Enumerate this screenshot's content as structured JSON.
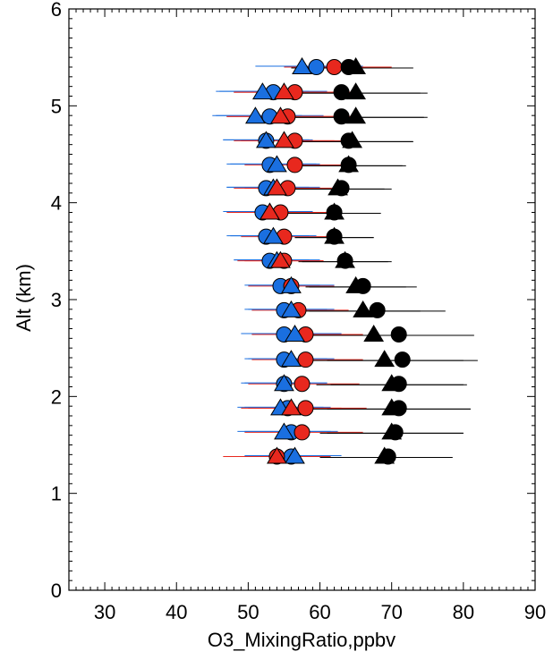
{
  "chart_data": {
    "type": "scatter",
    "title": "",
    "xlabel": "O3_MixingRatio,ppbv",
    "ylabel": "Alt (km)",
    "xlim": [
      25,
      90
    ],
    "ylim": [
      0,
      6
    ],
    "xticks": [
      "30",
      "40",
      "50",
      "60",
      "70",
      "80",
      "90"
    ],
    "yticks": [
      "0",
      "1",
      "2",
      "3",
      "4",
      "5",
      "6"
    ],
    "grid": false,
    "colors": {
      "blue": "#1a6fe0",
      "red": "#e8281e",
      "black": "#000000"
    },
    "series": [
      {
        "marker": "circle",
        "color": "blue",
        "points": [
          {
            "x": 59.5,
            "y": 5.4,
            "xerr": [
              53,
              66
            ]
          },
          {
            "x": 53.5,
            "y": 5.14,
            "xerr": [
              46,
              61
            ]
          },
          {
            "x": 53,
            "y": 4.89,
            "xerr": [
              45.5,
              60.5
            ]
          },
          {
            "x": 52.5,
            "y": 4.64,
            "xerr": [
              46.5,
              59
            ]
          },
          {
            "x": 53,
            "y": 4.39,
            "xerr": [
              47,
              59.5
            ]
          },
          {
            "x": 52.5,
            "y": 4.15,
            "xerr": [
              47,
              58.5
            ]
          },
          {
            "x": 52,
            "y": 3.9,
            "xerr": [
              46.5,
              58
            ]
          },
          {
            "x": 52.5,
            "y": 3.65,
            "xerr": [
              47,
              58.5
            ]
          },
          {
            "x": 53,
            "y": 3.4,
            "xerr": [
              48,
              58.5
            ]
          },
          {
            "x": 54.5,
            "y": 3.14,
            "xerr": [
              49.5,
              60
            ]
          },
          {
            "x": 55,
            "y": 2.89,
            "xerr": [
              49.5,
              61
            ]
          },
          {
            "x": 55,
            "y": 2.64,
            "xerr": [
              49,
              62
            ]
          },
          {
            "x": 55,
            "y": 2.38,
            "xerr": [
              49.5,
              61
            ]
          },
          {
            "x": 55,
            "y": 2.13,
            "xerr": [
              49.5,
              61
            ]
          },
          {
            "x": 55.5,
            "y": 1.88,
            "xerr": [
              49.5,
              61.5
            ]
          },
          {
            "x": 56,
            "y": 1.63,
            "xerr": [
              49.5,
              62.5
            ]
          },
          {
            "x": 56,
            "y": 1.38,
            "xerr": [
              49.5,
              62.5
            ]
          }
        ]
      },
      {
        "marker": "circle",
        "color": "red",
        "points": [
          {
            "x": 62,
            "y": 5.4,
            "xerr": [
              55,
              70
            ]
          },
          {
            "x": 56.5,
            "y": 5.14,
            "xerr": [
              48,
              65
            ]
          },
          {
            "x": 55.5,
            "y": 4.89,
            "xerr": [
              47,
              64.5
            ]
          },
          {
            "x": 56.5,
            "y": 4.64,
            "xerr": [
              49,
              64
            ]
          },
          {
            "x": 56.5,
            "y": 4.39,
            "xerr": [
              49.5,
              63.5
            ]
          },
          {
            "x": 55.5,
            "y": 4.15,
            "xerr": [
              49.5,
              62
            ]
          },
          {
            "x": 54.5,
            "y": 3.9,
            "xerr": [
              48.5,
              61
            ]
          },
          {
            "x": 55,
            "y": 3.65,
            "xerr": [
              49,
              61
            ]
          },
          {
            "x": 55,
            "y": 3.4,
            "xerr": [
              49.5,
              60.5
            ]
          },
          {
            "x": 56,
            "y": 3.14,
            "xerr": [
              50,
              62
            ]
          },
          {
            "x": 57,
            "y": 2.89,
            "xerr": [
              50.5,
              64
            ]
          },
          {
            "x": 58,
            "y": 2.64,
            "xerr": [
              50.5,
              66
            ]
          },
          {
            "x": 58,
            "y": 2.38,
            "xerr": [
              50.5,
              66
            ]
          },
          {
            "x": 57.5,
            "y": 2.13,
            "xerr": [
              50,
              65.5
            ]
          },
          {
            "x": 58,
            "y": 1.88,
            "xerr": [
              50,
              66.5
            ]
          },
          {
            "x": 57.5,
            "y": 1.63,
            "xerr": [
              49.5,
              66
            ]
          },
          {
            "x": 54,
            "y": 1.38,
            "xerr": [
              47,
              61
            ]
          }
        ]
      },
      {
        "marker": "circle",
        "color": "black",
        "points": [
          {
            "x": 64,
            "y": 5.4,
            "xerr": [
              56,
              73
            ]
          },
          {
            "x": 63,
            "y": 5.14,
            "xerr": [
              52,
              74
            ]
          },
          {
            "x": 63,
            "y": 4.89,
            "xerr": [
              52,
              74.5
            ]
          },
          {
            "x": 64,
            "y": 4.64,
            "xerr": [
              55,
              73
            ]
          },
          {
            "x": 64,
            "y": 4.39,
            "xerr": [
              56,
              72
            ]
          },
          {
            "x": 63,
            "y": 4.15,
            "xerr": [
              56,
              70
            ]
          },
          {
            "x": 62,
            "y": 3.9,
            "xerr": [
              55.5,
              68.5
            ]
          },
          {
            "x": 62,
            "y": 3.65,
            "xerr": [
              56.5,
              67.5
            ]
          },
          {
            "x": 63.5,
            "y": 3.4,
            "xerr": [
              57,
              70
            ]
          },
          {
            "x": 66,
            "y": 3.14,
            "xerr": [
              58.5,
              73.5
            ]
          },
          {
            "x": 68,
            "y": 2.89,
            "xerr": [
              58.5,
              77.5
            ]
          },
          {
            "x": 71,
            "y": 2.64,
            "xerr": [
              60,
              81.5
            ]
          },
          {
            "x": 71.5,
            "y": 2.38,
            "xerr": [
              61,
              82
            ]
          },
          {
            "x": 71,
            "y": 2.13,
            "xerr": [
              61.5,
              80
            ]
          },
          {
            "x": 71,
            "y": 1.88,
            "xerr": [
              61,
              81
            ]
          },
          {
            "x": 70.5,
            "y": 1.63,
            "xerr": [
              61,
              80
            ]
          },
          {
            "x": 69.5,
            "y": 1.38,
            "xerr": [
              60.5,
              78.5
            ]
          }
        ]
      },
      {
        "marker": "triangle",
        "color": "blue",
        "points": [
          {
            "x": 57.5,
            "y": 5.4,
            "xerr": [
              51,
              64
            ]
          },
          {
            "x": 52,
            "y": 5.14,
            "xerr": [
              45.5,
              58.5
            ]
          },
          {
            "x": 51,
            "y": 4.89,
            "xerr": [
              45,
              57.5
            ]
          },
          {
            "x": 52.5,
            "y": 4.64,
            "xerr": [
              46.5,
              58.5
            ]
          },
          {
            "x": 54,
            "y": 4.39,
            "xerr": [
              47.5,
              60
            ]
          },
          {
            "x": 53.5,
            "y": 4.15,
            "xerr": [
              47,
              60
            ]
          },
          {
            "x": 53,
            "y": 3.9,
            "xerr": [
              47,
              59
            ]
          },
          {
            "x": 53.5,
            "y": 3.65,
            "xerr": [
              47.5,
              59.5
            ]
          },
          {
            "x": 54,
            "y": 3.4,
            "xerr": [
              48,
              60
            ]
          },
          {
            "x": 56,
            "y": 3.14,
            "xerr": [
              50,
              62
            ]
          },
          {
            "x": 56,
            "y": 2.89,
            "xerr": [
              50,
              62
            ]
          },
          {
            "x": 56.5,
            "y": 2.64,
            "xerr": [
              50,
              63
            ]
          },
          {
            "x": 56,
            "y": 2.38,
            "xerr": [
              50,
              62
            ]
          },
          {
            "x": 55,
            "y": 2.13,
            "xerr": [
              49,
              61
            ]
          },
          {
            "x": 54.5,
            "y": 1.88,
            "xerr": [
              48.5,
              60.5
            ]
          },
          {
            "x": 55,
            "y": 1.63,
            "xerr": [
              48.5,
              61.5
            ]
          },
          {
            "x": 56.5,
            "y": 1.38,
            "xerr": [
              50,
              63
            ]
          }
        ]
      },
      {
        "marker": "triangle",
        "color": "red",
        "points": [
          {
            "x": 55,
            "y": 5.14,
            "xerr": [
              48,
              62
            ]
          },
          {
            "x": 54.5,
            "y": 4.89,
            "xerr": [
              47,
              62
            ]
          },
          {
            "x": 55,
            "y": 4.64,
            "xerr": [
              48,
              62
            ]
          },
          {
            "x": 54,
            "y": 4.15,
            "xerr": [
              48,
              60
            ]
          },
          {
            "x": 53,
            "y": 3.9,
            "xerr": [
              47,
              59
            ]
          },
          {
            "x": 54.5,
            "y": 3.4,
            "xerr": [
              48.5,
              60.5
            ]
          },
          {
            "x": 56,
            "y": 1.88,
            "xerr": [
              49,
              63
            ]
          },
          {
            "x": 54,
            "y": 1.38,
            "xerr": [
              46.5,
              61.5
            ]
          }
        ]
      },
      {
        "marker": "triangle",
        "color": "black",
        "points": [
          {
            "x": 65,
            "y": 5.4,
            "xerr": [
              57,
              73
            ]
          },
          {
            "x": 65,
            "y": 5.14,
            "xerr": [
              55,
              75
            ]
          },
          {
            "x": 65,
            "y": 4.89,
            "xerr": [
              55,
              75
            ]
          },
          {
            "x": 64.5,
            "y": 4.64,
            "xerr": [
              56,
              73
            ]
          },
          {
            "x": 64,
            "y": 4.39,
            "xerr": [
              56.5,
              71.5
            ]
          },
          {
            "x": 62.5,
            "y": 4.15,
            "xerr": [
              56,
              69
            ]
          },
          {
            "x": 62,
            "y": 3.9,
            "xerr": [
              56,
              68
            ]
          },
          {
            "x": 62,
            "y": 3.65,
            "xerr": [
              56.5,
              67.5
            ]
          },
          {
            "x": 63.5,
            "y": 3.4,
            "xerr": [
              57.5,
              69.5
            ]
          },
          {
            "x": 65,
            "y": 3.14,
            "xerr": [
              58,
              72
            ]
          },
          {
            "x": 66,
            "y": 2.89,
            "xerr": [
              58,
              74
            ]
          },
          {
            "x": 67.5,
            "y": 2.64,
            "xerr": [
              58,
              77
            ]
          },
          {
            "x": 69,
            "y": 2.38,
            "xerr": [
              58,
              80
            ]
          },
          {
            "x": 70,
            "y": 2.13,
            "xerr": [
              59.5,
              80.5
            ]
          },
          {
            "x": 70,
            "y": 1.88,
            "xerr": [
              59,
              81
            ]
          },
          {
            "x": 70,
            "y": 1.63,
            "xerr": [
              60,
              80
            ]
          },
          {
            "x": 69,
            "y": 1.38,
            "xerr": [
              60,
              78
            ]
          }
        ]
      }
    ]
  }
}
